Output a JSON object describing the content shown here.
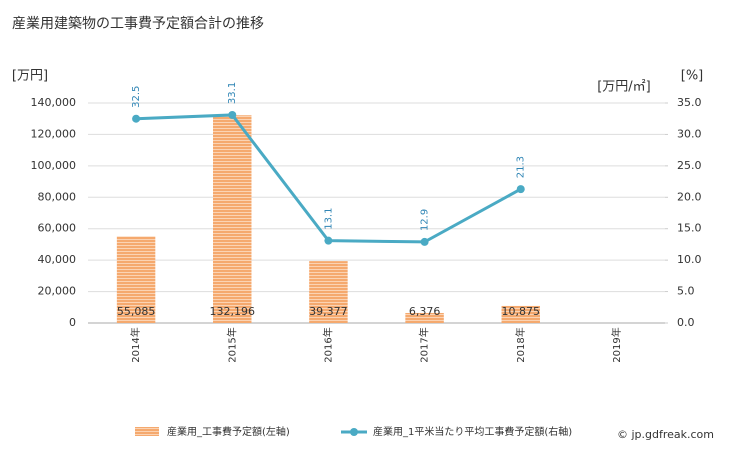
{
  "chart_data": {
    "type": "bar_line",
    "title": "産業用建築物の工事費予定額合計の推移",
    "ylabel": "[万円]",
    "y2labels": [
      "[万円/㎡]",
      "[%]"
    ],
    "categories": [
      "2014年",
      "2015年",
      "2016年",
      "2017年",
      "2018年",
      "2019年"
    ],
    "series": [
      {
        "name": "産業用_工事費予定額(左軸)",
        "type": "bar",
        "color": "#f5a96e",
        "values": [
          55085,
          132196,
          39377,
          6376,
          10875,
          null
        ],
        "value_labels": [
          "55,085",
          "132,196",
          "39,377",
          "6,376",
          "10,875",
          null
        ]
      },
      {
        "name": "産業用_1平米当たり平均工事費予定額(右軸)",
        "type": "line",
        "axis": "y2",
        "color": "#4aaac4",
        "values": [
          32.5,
          33.1,
          13.1,
          12.9,
          21.3,
          null
        ]
      }
    ],
    "ylim": [
      0,
      140000
    ],
    "yticks": [
      0,
      {
        "value": 20000,
        "label": "20,000"
      },
      {
        "value": 40000,
        "label": "40,000"
      },
      {
        "value": 60000,
        "label": "60,000"
      },
      {
        "value": 80000,
        "label": "80,000"
      },
      {
        "value": 100000,
        "label": "100,000"
      },
      {
        "value": 120000,
        "label": "120,000"
      },
      {
        "value": 140000,
        "label": "140,000"
      }
    ],
    "y2lim": [
      0,
      35
    ],
    "y2ticks": [
      {
        "value": 0,
        "label": "0.0"
      },
      {
        "value": 5,
        "label": "5.0"
      },
      {
        "value": 10,
        "label": "10.0"
      },
      {
        "value": 15,
        "label": "15.0"
      },
      {
        "value": 20,
        "label": "20.0"
      },
      {
        "value": 25,
        "label": "25.0"
      },
      {
        "value": 30,
        "label": "30.0"
      },
      {
        "value": 35,
        "label": "35.0"
      }
    ],
    "grid": true,
    "watermark": "© jp.gdfreak.com"
  }
}
